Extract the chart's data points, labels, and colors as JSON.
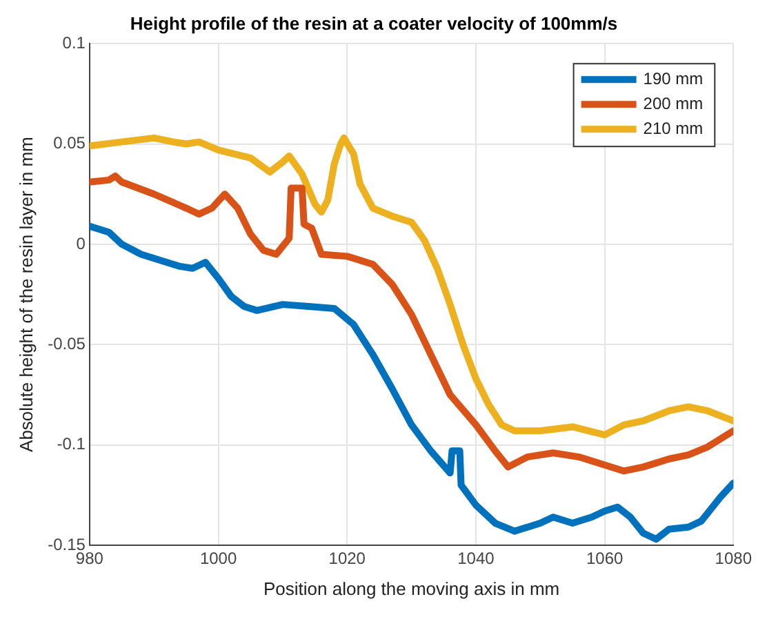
{
  "chart_data": {
    "type": "line",
    "title": "Height profile of the resin at a coater velocity of 100mm/s",
    "xlabel": "Position along the moving axis in mm",
    "ylabel": "Absolute height of the resin layer in mm",
    "xlim": [
      980,
      1080
    ],
    "xticks": [
      980,
      1000,
      1020,
      1040,
      1060,
      1080
    ],
    "ylim": [
      -0.15,
      0.1
    ],
    "yticks": [
      -0.15,
      -0.1,
      -0.05,
      0,
      0.05,
      0.1
    ],
    "grid": true,
    "legend": "top right",
    "marker": "none",
    "line_style": "solid",
    "series": [
      {
        "name": "190 mm",
        "color": "#0072bd",
        "x": [
          980,
          983,
          985,
          988,
          991,
          994,
          996,
          998,
          1000,
          1002,
          1004,
          1006,
          1010,
          1014,
          1018,
          1021,
          1024,
          1027,
          1030,
          1033,
          1036,
          1036.3,
          1037.5,
          1037.7,
          1040,
          1043,
          1046,
          1050,
          1052,
          1055,
          1058,
          1060,
          1062,
          1064,
          1066,
          1068,
          1070,
          1073,
          1075,
          1078,
          1080
        ],
        "values": [
          0.009,
          0.006,
          0,
          -0.005,
          -0.008,
          -0.011,
          -0.012,
          -0.009,
          -0.017,
          -0.026,
          -0.031,
          -0.033,
          -0.03,
          -0.031,
          -0.032,
          -0.04,
          -0.055,
          -0.072,
          -0.09,
          -0.103,
          -0.114,
          -0.103,
          -0.103,
          -0.12,
          -0.13,
          -0.139,
          -0.143,
          -0.139,
          -0.136,
          -0.139,
          -0.136,
          -0.133,
          -0.131,
          -0.136,
          -0.144,
          -0.147,
          -0.142,
          -0.141,
          -0.138,
          -0.126,
          -0.119
        ]
      },
      {
        "name": "200 mm",
        "color": "#d95319",
        "x": [
          980,
          983,
          984,
          985,
          990,
          995,
          997,
          999,
          1001,
          1003,
          1005,
          1007,
          1009,
          1011,
          1011.3,
          1013,
          1013.3,
          1014.5,
          1016,
          1020,
          1024,
          1027,
          1030,
          1033,
          1036,
          1040,
          1043,
          1045,
          1048,
          1052,
          1056,
          1060,
          1063,
          1066,
          1070,
          1073,
          1076,
          1080
        ],
        "values": [
          0.031,
          0.032,
          0.034,
          0.031,
          0.025,
          0.018,
          0.015,
          0.018,
          0.025,
          0.018,
          0.005,
          -0.003,
          -0.005,
          0.003,
          0.028,
          0.028,
          0.01,
          0.008,
          -0.005,
          -0.006,
          -0.01,
          -0.02,
          -0.035,
          -0.055,
          -0.075,
          -0.09,
          -0.103,
          -0.111,
          -0.106,
          -0.104,
          -0.106,
          -0.11,
          -0.113,
          -0.111,
          -0.107,
          -0.105,
          -0.101,
          -0.093
        ]
      },
      {
        "name": "210 mm",
        "color": "#edb120",
        "x": [
          980,
          985,
          990,
          993,
          995,
          997,
          1000,
          1005,
          1008,
          1010,
          1011,
          1013,
          1015,
          1016,
          1017,
          1018,
          1019,
          1019.5,
          1021,
          1022,
          1024,
          1027,
          1030,
          1032,
          1034,
          1036,
          1038,
          1040,
          1042,
          1044,
          1046,
          1050,
          1055,
          1060,
          1063,
          1066,
          1070,
          1073,
          1076,
          1080
        ],
        "values": [
          0.049,
          0.051,
          0.053,
          0.051,
          0.05,
          0.051,
          0.047,
          0.043,
          0.036,
          0.041,
          0.044,
          0.035,
          0.02,
          0.016,
          0.022,
          0.04,
          0.05,
          0.053,
          0.045,
          0.03,
          0.018,
          0.014,
          0.011,
          0.002,
          -0.012,
          -0.03,
          -0.05,
          -0.067,
          -0.08,
          -0.09,
          -0.093,
          -0.093,
          -0.091,
          -0.095,
          -0.09,
          -0.088,
          -0.083,
          -0.081,
          -0.083,
          -0.088
        ]
      }
    ]
  }
}
